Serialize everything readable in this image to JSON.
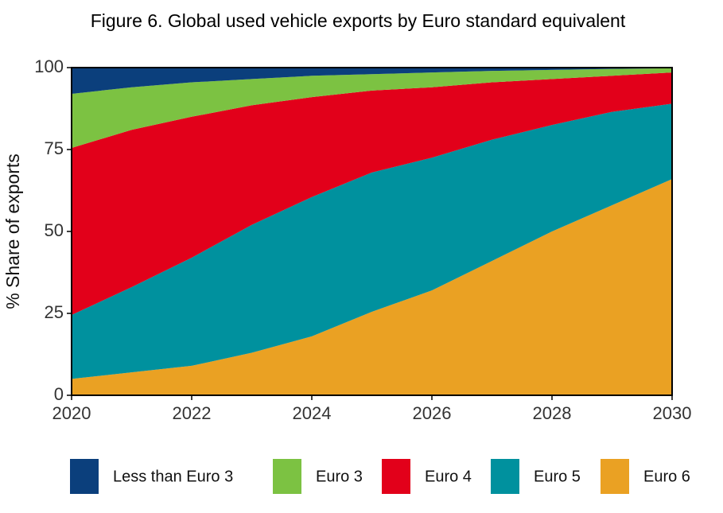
{
  "chart_data": {
    "type": "stacked-area",
    "title": "Figure 6. Global used vehicle exports by Euro standard equivalent",
    "y_label": "% Share of exports",
    "x": [
      2020,
      2021,
      2022,
      2023,
      2024,
      2025,
      2026,
      2027,
      2028,
      2029,
      2030
    ],
    "xlim": [
      2020,
      2030
    ],
    "xticks": [
      2020,
      2022,
      2024,
      2026,
      2028,
      2030
    ],
    "ylim": [
      0,
      100
    ],
    "yticks": [
      0,
      25,
      50,
      75,
      100
    ],
    "series": [
      {
        "name": "Less than Euro 3",
        "color": "#0b3f7c",
        "values": [
          8,
          6,
          4.5,
          3.5,
          2.5,
          2,
          1.5,
          1,
          0.7,
          0.4,
          0.2
        ]
      },
      {
        "name": "Euro 3",
        "color": "#7cc242",
        "values": [
          16.5,
          13,
          10.5,
          8,
          6.5,
          5,
          4.5,
          3.5,
          2.8,
          2.1,
          1.3
        ]
      },
      {
        "name": "Euro 4",
        "color": "#e2001a",
        "values": [
          51,
          48,
          43,
          36.5,
          30.5,
          25,
          21.5,
          17.5,
          14,
          11,
          9.5
        ]
      },
      {
        "name": "Euro 5",
        "color": "#00919e",
        "values": [
          19.5,
          26,
          33,
          39,
          42.5,
          42.5,
          40.5,
          37,
          32.5,
          28.5,
          23
        ]
      },
      {
        "name": "Euro 6",
        "color": "#eaa123",
        "values": [
          5,
          7,
          9,
          13,
          18,
          25.5,
          32,
          41,
          50,
          58,
          66
        ]
      }
    ]
  }
}
